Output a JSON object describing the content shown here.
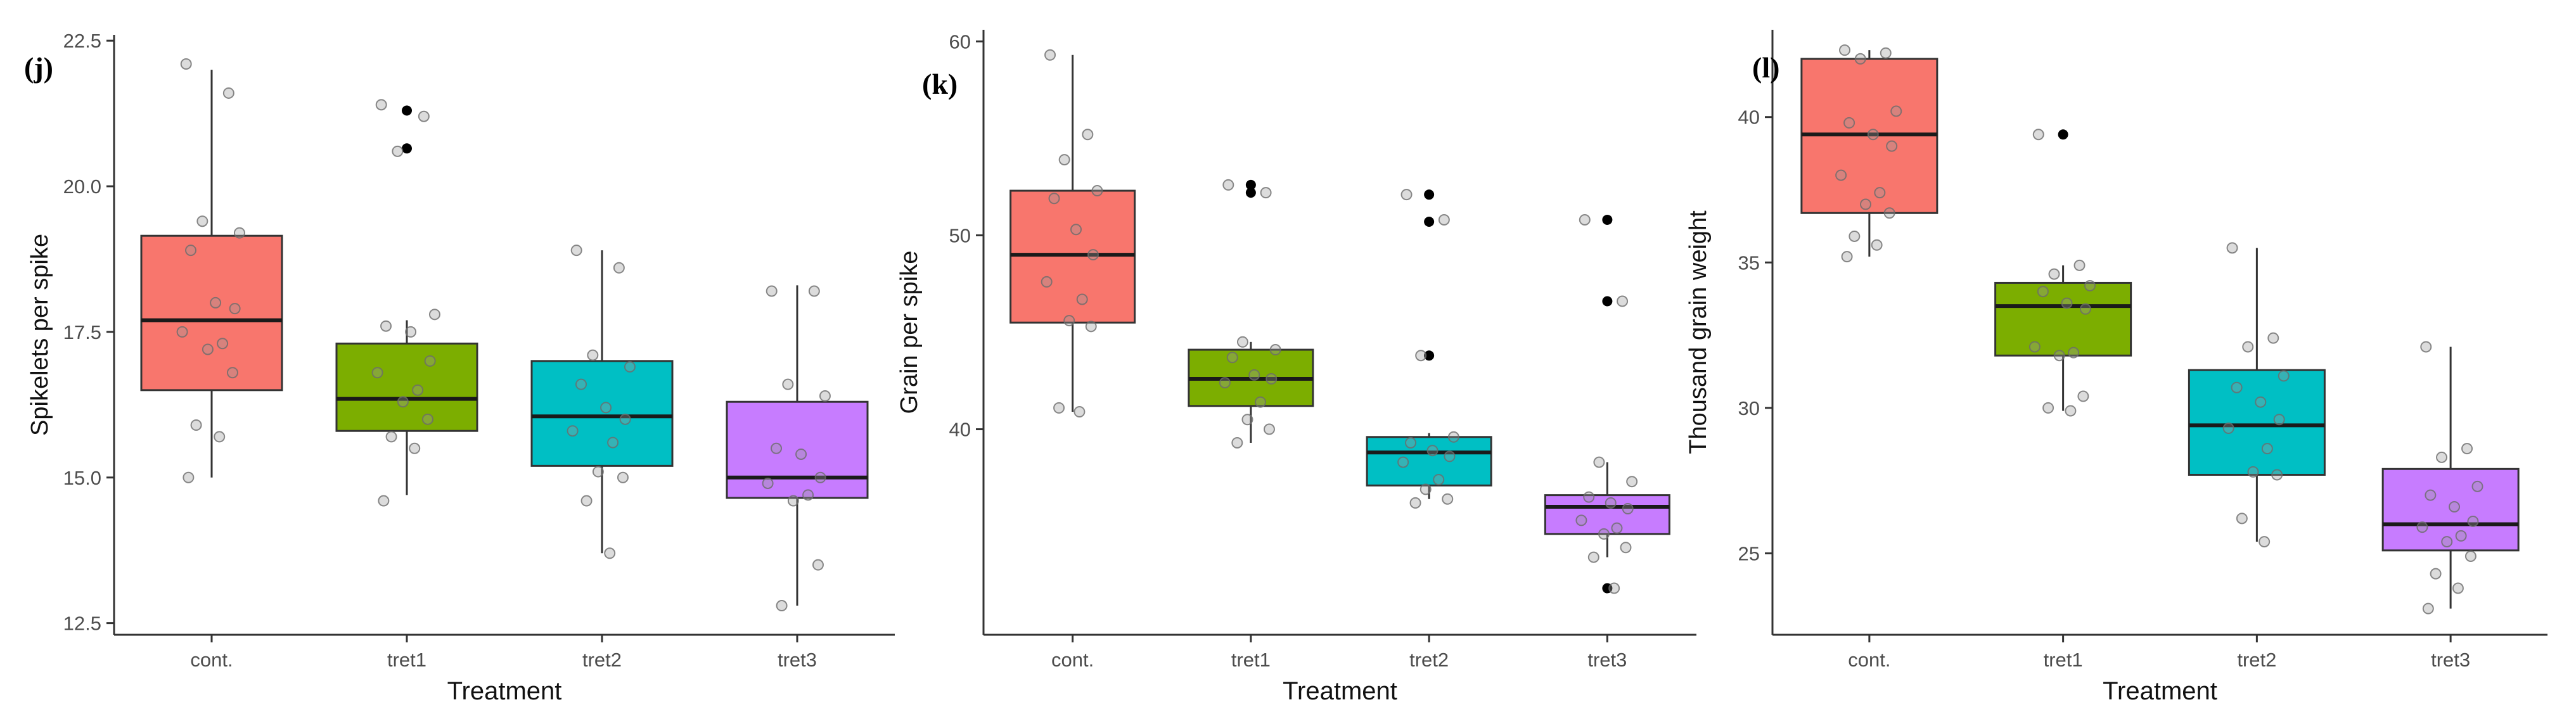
{
  "figure": {
    "colors": {
      "cont.": "#F8766D",
      "tret1": "#7CAE00",
      "tret2": "#00BFC4",
      "tret3": "#C77CFF",
      "axis": "#333333",
      "median": "#1a1a1a",
      "whisker": "#333333",
      "outlier": "#000000",
      "point": "#9a9a9a"
    }
  },
  "chart_data": [
    {
      "type": "box",
      "panel_label": "(j)",
      "title": "",
      "xlabel": "Treatment",
      "ylabel": "Spikelets per spike",
      "categories": [
        "cont.",
        "tret1",
        "tret2",
        "tret3"
      ],
      "ylim": [
        12.3,
        22.6
      ],
      "yticks": [
        12.5,
        15.0,
        17.5,
        20.0,
        22.5
      ],
      "ytick_labels": [
        "12.5",
        "15.0",
        "17.5",
        "20.0",
        "22.5"
      ],
      "boxes": [
        {
          "category": "cont.",
          "whisker_low": 15.0,
          "q1": 16.5,
          "median": 17.7,
          "q3": 19.15,
          "whisker_high": 22.0,
          "outliers": []
        },
        {
          "category": "tret1",
          "whisker_low": 14.7,
          "q1": 15.8,
          "median": 16.35,
          "q3": 17.3,
          "whisker_high": 17.7,
          "outliers": [
            21.3,
            20.65
          ]
        },
        {
          "category": "tret2",
          "whisker_low": 13.7,
          "q1": 15.2,
          "median": 16.05,
          "q3": 17.0,
          "whisker_high": 18.9,
          "outliers": []
        },
        {
          "category": "tret3",
          "whisker_low": 12.8,
          "q1": 14.65,
          "median": 15.0,
          "q3": 16.3,
          "whisker_high": 18.3,
          "outliers": []
        }
      ],
      "points": [
        {
          "category": "cont.",
          "values": [
            22.1,
            21.6,
            19.4,
            19.2,
            18.9,
            18.0,
            17.9,
            17.5,
            17.3,
            17.2,
            16.8,
            15.9,
            15.7,
            15.0
          ]
        },
        {
          "category": "tret1",
          "values": [
            21.4,
            21.2,
            20.6,
            17.8,
            17.6,
            17.5,
            17.0,
            16.8,
            16.5,
            16.3,
            16.0,
            15.7,
            15.5,
            14.6
          ]
        },
        {
          "category": "tret2",
          "values": [
            18.9,
            18.6,
            17.1,
            16.9,
            16.6,
            16.2,
            16.0,
            15.8,
            15.6,
            15.1,
            15.0,
            14.6,
            13.7
          ]
        },
        {
          "category": "tret3",
          "values": [
            18.2,
            18.2,
            16.6,
            16.4,
            15.5,
            15.4,
            15.0,
            14.9,
            14.7,
            14.6,
            13.5,
            12.8
          ]
        }
      ]
    },
    {
      "type": "box",
      "panel_label": "(k)",
      "title": "",
      "xlabel": "Treatment",
      "ylabel": "Grain per spike",
      "categories": [
        "cont.",
        "tret1",
        "tret2",
        "tret3"
      ],
      "ylim": [
        29.4,
        60.6
      ],
      "yticks": [
        40,
        50,
        60
      ],
      "ytick_labels": [
        "40",
        "50",
        "60"
      ],
      "boxes": [
        {
          "category": "cont.",
          "whisker_low": 40.9,
          "q1": 45.5,
          "median": 49.0,
          "q3": 52.3,
          "whisker_high": 59.3,
          "outliers": []
        },
        {
          "category": "tret1",
          "whisker_low": 39.3,
          "q1": 41.2,
          "median": 42.6,
          "q3": 44.1,
          "whisker_high": 44.5,
          "outliers": [
            52.6,
            52.2
          ]
        },
        {
          "category": "tret2",
          "whisker_low": 36.4,
          "q1": 37.1,
          "median": 38.8,
          "q3": 39.6,
          "whisker_high": 39.8,
          "outliers": [
            52.1,
            50.7,
            43.8
          ]
        },
        {
          "category": "tret3",
          "whisker_low": 33.4,
          "q1": 34.6,
          "median": 36.0,
          "q3": 36.6,
          "whisker_high": 38.3,
          "outliers": [
            50.8,
            46.6,
            31.8
          ]
        }
      ],
      "points": [
        {
          "category": "cont.",
          "values": [
            59.3,
            55.2,
            53.9,
            52.3,
            51.9,
            50.3,
            49.0,
            47.6,
            46.7,
            45.6,
            45.3,
            41.1,
            40.9
          ]
        },
        {
          "category": "tret1",
          "values": [
            52.6,
            52.2,
            44.5,
            44.1,
            43.7,
            42.8,
            42.6,
            42.4,
            41.4,
            40.5,
            40.0,
            39.3
          ]
        },
        {
          "category": "tret2",
          "values": [
            52.1,
            50.8,
            43.8,
            39.6,
            39.3,
            38.9,
            38.6,
            38.3,
            37.4,
            36.9,
            36.4,
            36.2
          ]
        },
        {
          "category": "tret3",
          "values": [
            50.8,
            46.6,
            38.3,
            37.3,
            36.5,
            36.2,
            35.9,
            35.3,
            34.9,
            34.6,
            33.9,
            33.4,
            31.8
          ]
        }
      ]
    },
    {
      "type": "box",
      "panel_label": "(l)",
      "title": "",
      "xlabel": "Treatment",
      "ylabel": "Thousand grain weight",
      "categories": [
        "cont.",
        "tret1",
        "tret2",
        "tret3"
      ],
      "ylim": [
        22.2,
        43.0
      ],
      "yticks": [
        25,
        30,
        35,
        40
      ],
      "ytick_labels": [
        "25",
        "30",
        "35",
        "40"
      ],
      "boxes": [
        {
          "category": "cont.",
          "whisker_low": 35.2,
          "q1": 36.7,
          "median": 39.4,
          "q3": 42.0,
          "whisker_high": 42.3,
          "outliers": []
        },
        {
          "category": "tret1",
          "whisker_low": 29.9,
          "q1": 31.8,
          "median": 33.5,
          "q3": 34.3,
          "whisker_high": 34.9,
          "outliers": [
            39.4
          ]
        },
        {
          "category": "tret2",
          "whisker_low": 25.4,
          "q1": 27.7,
          "median": 29.4,
          "q3": 31.3,
          "whisker_high": 35.5,
          "outliers": []
        },
        {
          "category": "tret3",
          "whisker_low": 23.1,
          "q1": 25.1,
          "median": 26.0,
          "q3": 27.9,
          "whisker_high": 32.1,
          "outliers": []
        }
      ],
      "points": [
        {
          "category": "cont.",
          "values": [
            42.3,
            42.2,
            42.0,
            40.2,
            39.8,
            39.4,
            39.0,
            38.0,
            37.4,
            37.0,
            36.7,
            35.9,
            35.6,
            35.2
          ]
        },
        {
          "category": "tret1",
          "values": [
            39.4,
            34.9,
            34.6,
            34.2,
            34.0,
            33.6,
            33.4,
            32.1,
            31.9,
            31.8,
            30.4,
            30.0,
            29.9
          ]
        },
        {
          "category": "tret2",
          "values": [
            35.5,
            32.4,
            32.1,
            31.1,
            30.7,
            30.2,
            29.6,
            29.3,
            28.6,
            27.8,
            27.7,
            26.2,
            25.4
          ]
        },
        {
          "category": "tret3",
          "values": [
            32.1,
            28.6,
            28.3,
            27.3,
            27.0,
            26.6,
            26.1,
            25.9,
            25.6,
            25.4,
            24.9,
            24.3,
            23.8,
            23.1
          ]
        }
      ]
    }
  ]
}
